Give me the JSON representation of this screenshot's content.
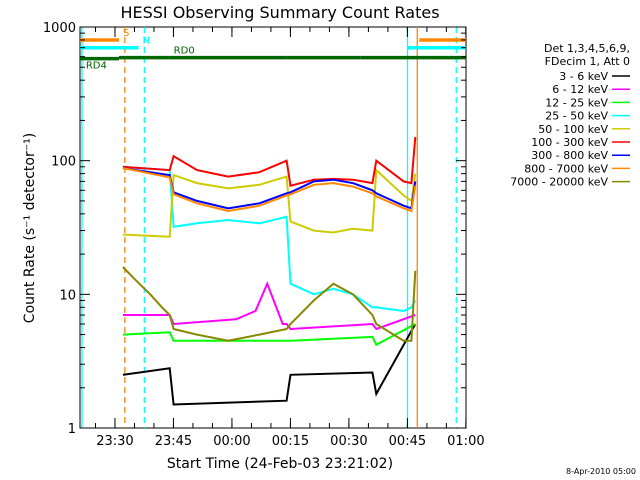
{
  "chart_data": {
    "type": "line",
    "title": "HESSI Observing Summary Count Rates",
    "xlabel": "Start Time (24-Feb-03 23:21:02)",
    "ylabel": "Count Rate (s⁻¹ detector⁻¹)",
    "ylog": true,
    "ylim": [
      1,
      1000
    ],
    "xlim_minutes": [
      0,
      99
    ],
    "yticks": [
      {
        "v": 1,
        "label": "1"
      },
      {
        "v": 10,
        "label": "10"
      },
      {
        "v": 100,
        "label": "100"
      },
      {
        "v": 1000,
        "label": "1000"
      }
    ],
    "xticks": [
      {
        "t": 8.97,
        "label": "23:30"
      },
      {
        "t": 23.97,
        "label": "23:45"
      },
      {
        "t": 38.97,
        "label": "00:00"
      },
      {
        "t": 53.97,
        "label": "00:15"
      },
      {
        "t": 68.97,
        "label": "00:30"
      },
      {
        "t": 83.97,
        "label": "00:45"
      },
      {
        "t": 98.97,
        "label": "01:00"
      }
    ],
    "legend_header": [
      "Det 1,3,4,5,6,9,",
      "FDecim 1, Att 0"
    ],
    "series": [
      {
        "name": "3 - 6 keV",
        "color": "#000000",
        "x": [
          11,
          23,
          24,
          53,
          54,
          75,
          76,
          86
        ],
        "y": [
          2.5,
          2.8,
          1.5,
          1.6,
          2.5,
          2.6,
          1.8,
          6.0
        ]
      },
      {
        "name": "6 - 12 keV",
        "color": "#ff00ff",
        "x": [
          11,
          23,
          24,
          40,
          45,
          48,
          52,
          53,
          54,
          75,
          76,
          86
        ],
        "y": [
          7,
          7,
          6,
          6.5,
          7.5,
          12,
          6,
          6,
          5.5,
          6,
          5.5,
          7
        ]
      },
      {
        "name": "12 - 25 keV",
        "color": "#00ff00",
        "x": [
          11,
          23,
          24,
          53,
          54,
          75,
          76,
          86
        ],
        "y": [
          5,
          5.2,
          4.5,
          4.5,
          4.5,
          4.8,
          4.2,
          6
        ]
      },
      {
        "name": "25 - 50 keV",
        "color": "#00ffff",
        "x": [
          11,
          23,
          24,
          30,
          38,
          46,
          53,
          54,
          60,
          65,
          70,
          75,
          76,
          83,
          85,
          86
        ],
        "y": [
          90,
          85,
          32,
          34,
          36,
          34,
          38,
          12,
          10,
          11,
          10,
          8,
          8,
          7.5,
          8,
          9
        ]
      },
      {
        "name": "50 - 100 keV",
        "color": "#cccc00",
        "x": [
          11,
          23,
          24,
          30,
          38,
          46,
          53,
          54,
          60,
          65,
          70,
          75,
          76,
          83,
          85,
          86
        ],
        "y": [
          28,
          27,
          78,
          68,
          62,
          66,
          76,
          35,
          30,
          29,
          31,
          30,
          85,
          55,
          50,
          80
        ]
      },
      {
        "name": "100 - 300 keV",
        "color": "#ff0000",
        "x": [
          11,
          23,
          24,
          30,
          38,
          46,
          53,
          54,
          60,
          65,
          70,
          75,
          76,
          83,
          85,
          86
        ],
        "y": [
          90,
          85,
          108,
          85,
          76,
          82,
          100,
          65,
          72,
          73,
          72,
          68,
          100,
          70,
          68,
          150
        ]
      },
      {
        "name": "300 - 800 keV",
        "color": "#0000ff",
        "x": [
          11,
          23,
          24,
          30,
          38,
          46,
          53,
          54,
          60,
          65,
          70,
          75,
          76,
          83,
          85,
          86
        ],
        "y": [
          88,
          78,
          58,
          50,
          44,
          48,
          57,
          58,
          70,
          72,
          68,
          60,
          57,
          46,
          44,
          70
        ]
      },
      {
        "name": "800 - 7000 keV",
        "color": "#ff8800",
        "x": [
          11,
          23,
          24,
          30,
          38,
          46,
          53,
          54,
          60,
          65,
          70,
          75,
          76,
          83,
          85,
          86
        ],
        "y": [
          88,
          75,
          56,
          48,
          42,
          46,
          55,
          56,
          66,
          68,
          64,
          57,
          54,
          44,
          42,
          65
        ]
      },
      {
        "name": "7000 - 20000 keV",
        "color": "#888800",
        "x": [
          11,
          14,
          18,
          21,
          23,
          24,
          30,
          38,
          46,
          53,
          54,
          60,
          65,
          70,
          75,
          76,
          83,
          85,
          86
        ],
        "y": [
          16,
          13,
          10,
          8,
          7,
          5.5,
          5,
          4.5,
          5,
          5.5,
          6,
          9,
          12,
          10,
          7,
          6,
          4.5,
          4.5,
          15
        ]
      }
    ],
    "state_bars": [
      {
        "label": "S",
        "color": "#ff8800",
        "y": 800,
        "segments": [
          [
            0,
            10
          ],
          [
            87,
            99
          ]
        ]
      },
      {
        "label": "N",
        "color": "#00ffff",
        "y": 700,
        "segments": [
          [
            0,
            15
          ],
          [
            84,
            99
          ]
        ]
      },
      {
        "label": "RD0",
        "color": "#006600",
        "y": 590,
        "segments": [
          [
            10,
            23
          ],
          [
            23,
            53
          ],
          [
            53,
            72
          ],
          [
            72,
            99
          ]
        ]
      },
      {
        "label": "RD4",
        "color": "#006600",
        "y": 580,
        "segments": [
          [
            0,
            10
          ]
        ]
      }
    ],
    "vlines": [
      {
        "t": 0.5,
        "color": "#00ffff",
        "dashed": false
      },
      {
        "t": 11.5,
        "color": "#ff8800",
        "dashed": true
      },
      {
        "t": 16.5,
        "color": "#00ffff",
        "dashed": true
      },
      {
        "t": 84,
        "color": "#00ffff",
        "dashed": false
      },
      {
        "t": 86.5,
        "color": "#ff8800",
        "dashed": false
      },
      {
        "t": 96.5,
        "color": "#00ffff",
        "dashed": true
      }
    ]
  },
  "footer_date": "8-Apr-2010 05:00"
}
